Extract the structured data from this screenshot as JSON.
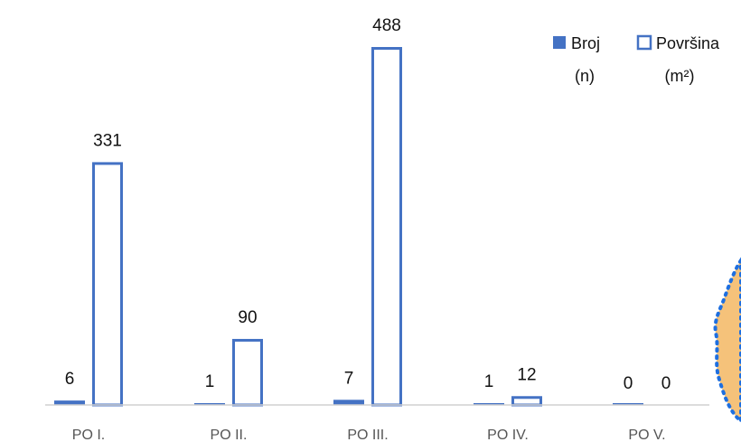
{
  "chart_data": {
    "type": "bar",
    "categories": [
      "PO I.",
      "PO II.",
      "PO III.",
      "PO IV.",
      "PO V."
    ],
    "series": [
      {
        "name": "Broj",
        "unit": "(n)",
        "values": [
          6,
          1,
          7,
          1,
          0
        ],
        "style": "filled"
      },
      {
        "name": "Površina",
        "unit": "(m²)",
        "values": [
          331,
          90,
          488,
          12,
          0
        ],
        "style": "outline"
      }
    ],
    "ylim": [
      0,
      488
    ],
    "grid": false,
    "legend_position": "top-right",
    "colors": {
      "series": "#4472C4",
      "baseline": "#d0d0d0",
      "map_fill": "#F5C27A",
      "map_outline": "#1E6FE0"
    }
  }
}
